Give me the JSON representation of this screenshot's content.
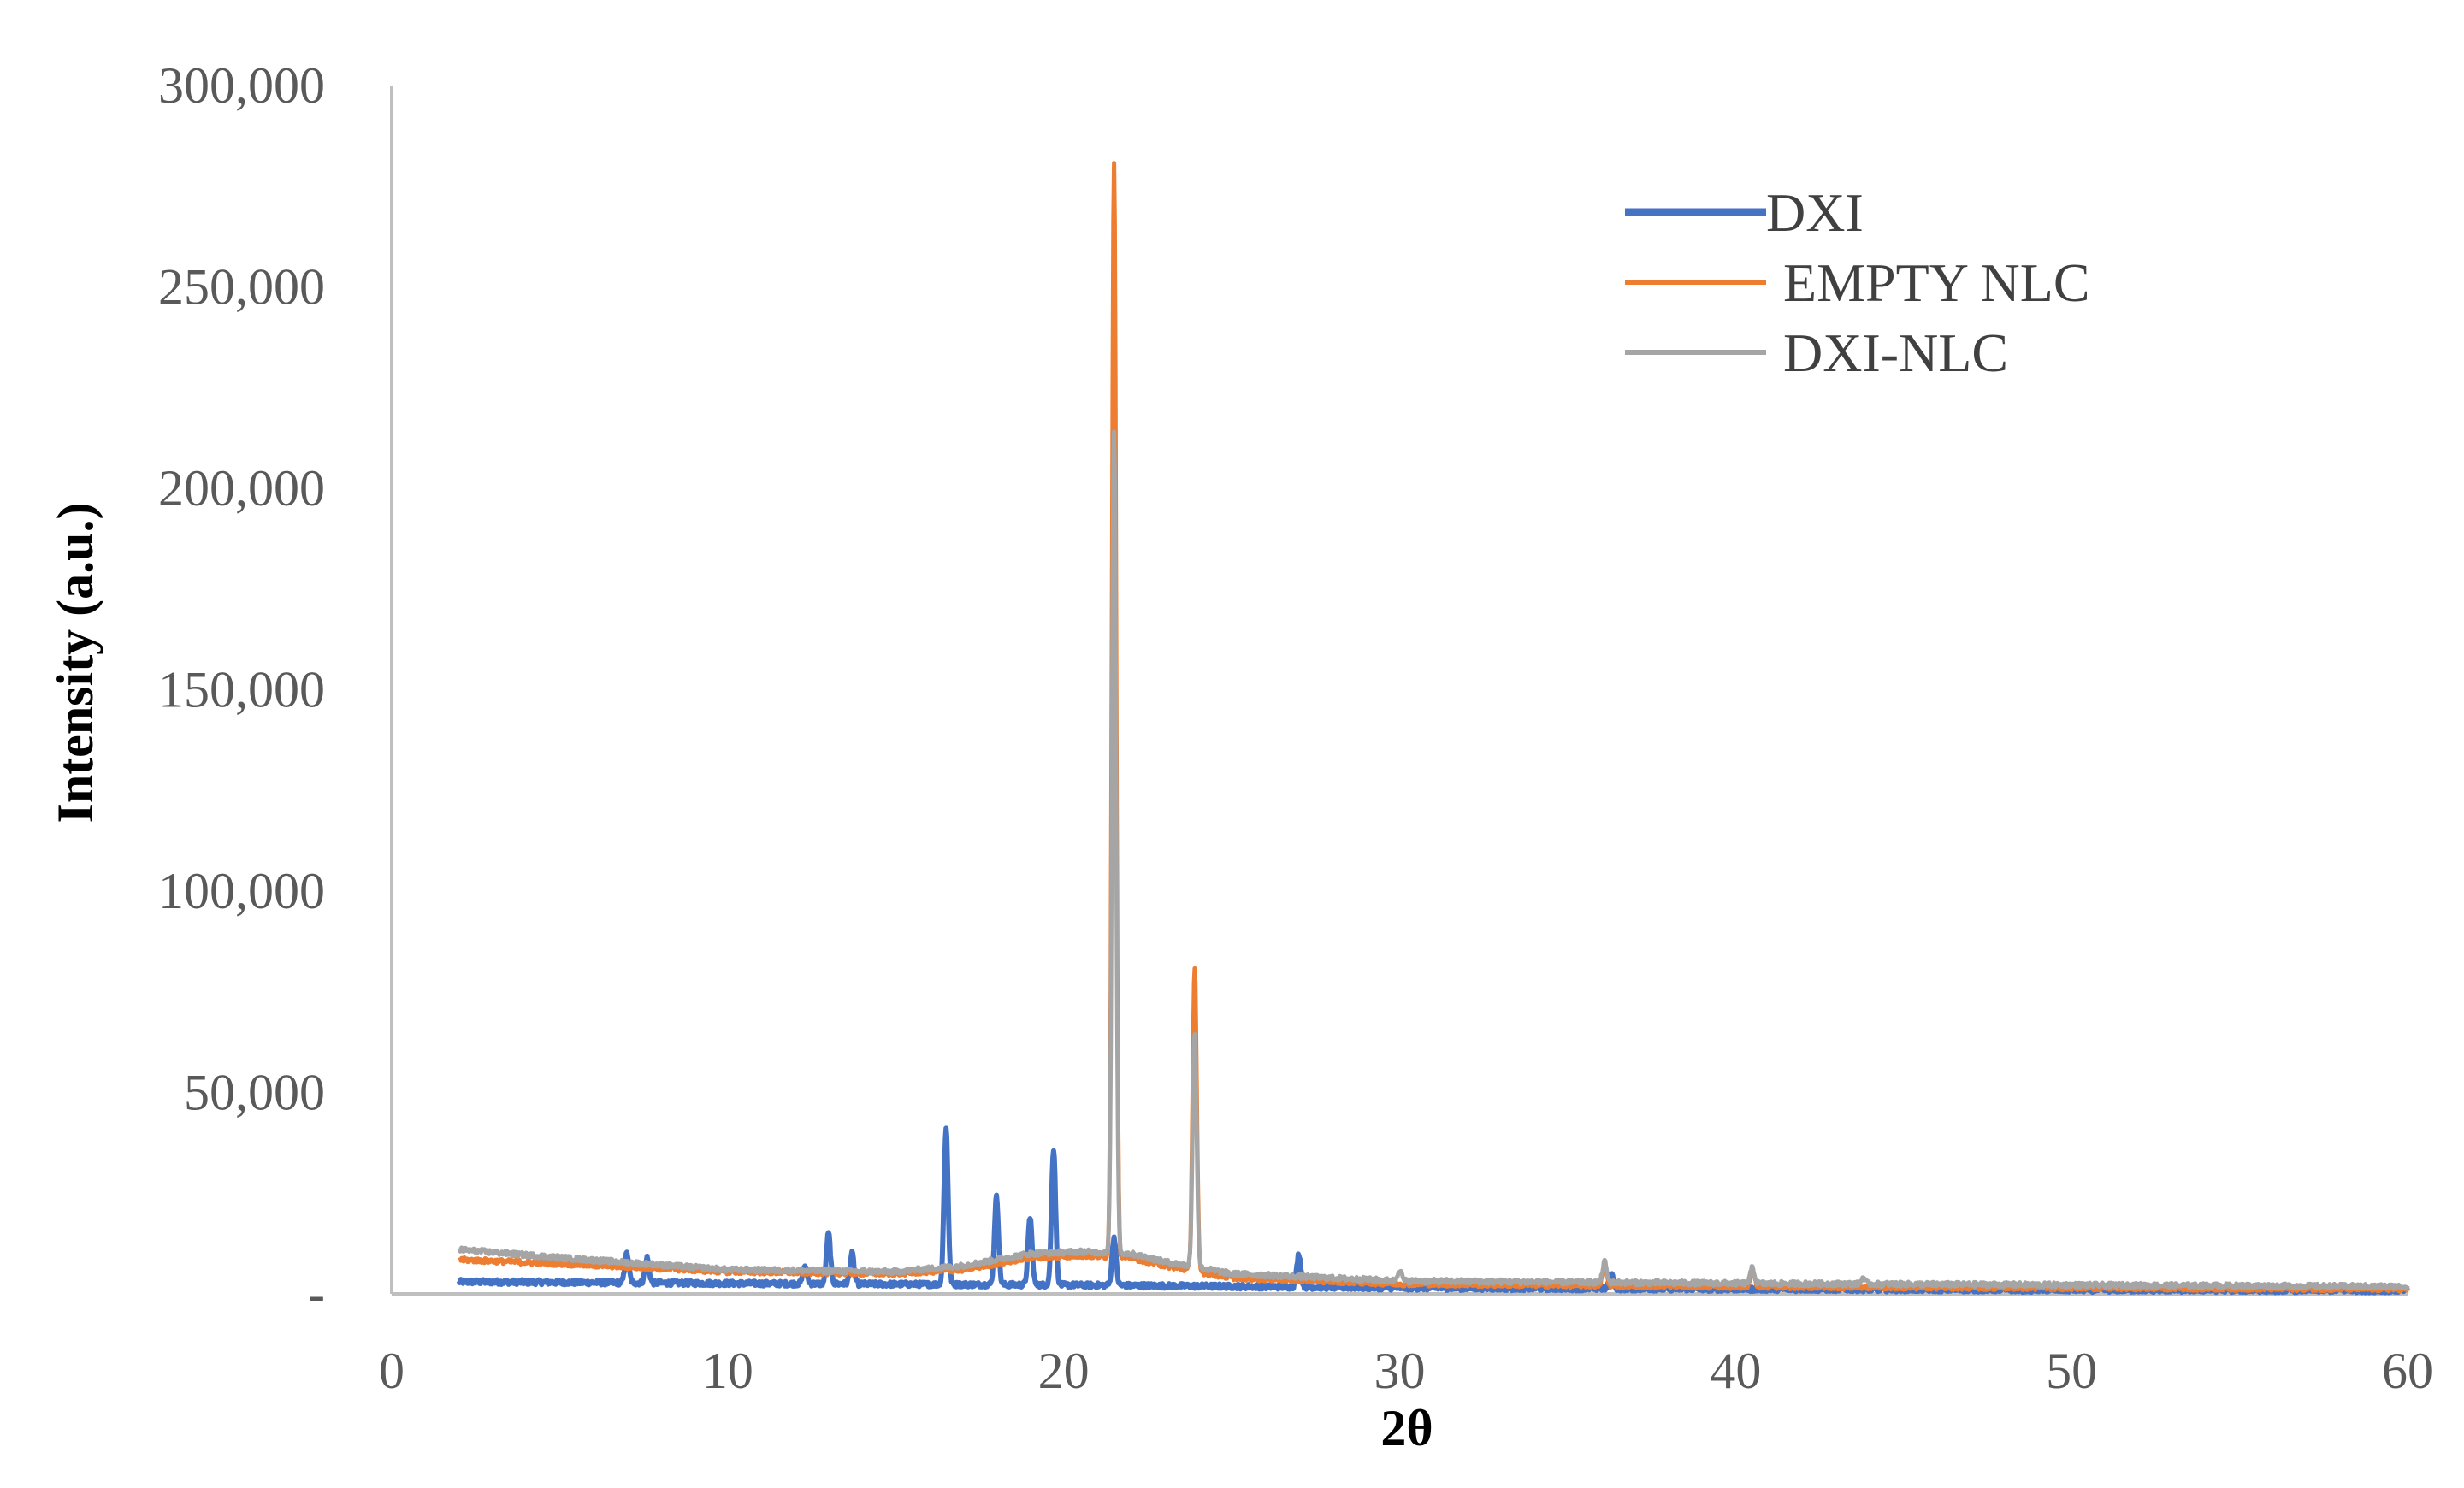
{
  "chart_data": {
    "type": "line",
    "title": "",
    "xlabel": "2θ",
    "ylabel": "Intensity (a.u.)",
    "xlim": [
      0,
      60
    ],
    "ylim": [
      0,
      300000
    ],
    "x_ticks": [
      0,
      10,
      20,
      30,
      40,
      50,
      60
    ],
    "x_tick_labels": [
      "0",
      "10",
      "20",
      "30",
      "40",
      "50",
      "60"
    ],
    "y_ticks": [
      0,
      50000,
      100000,
      150000,
      200000,
      250000,
      300000
    ],
    "y_tick_labels": [
      "-",
      "50,000",
      "100,000",
      "150,000",
      "200,000",
      "250,000",
      "300,000"
    ],
    "grid": false,
    "legend": "top-right",
    "series": [
      {
        "name": "DXI",
        "color": "#4472C4",
        "x_range": [
          2,
          60
        ],
        "baseline": [
          [
            2,
            3000
          ],
          [
            10,
            2600
          ],
          [
            20,
            2200
          ],
          [
            30,
            1500
          ],
          [
            40,
            1200
          ],
          [
            50,
            1000
          ],
          [
            60,
            900
          ]
        ],
        "peaks": [
          [
            7.0,
            10000
          ],
          [
            7.6,
            9000
          ],
          [
            12.3,
            7000
          ],
          [
            13.0,
            15000
          ],
          [
            13.7,
            10000
          ],
          [
            16.5,
            41000
          ],
          [
            18.0,
            24000
          ],
          [
            19.0,
            19000
          ],
          [
            19.7,
            36000
          ],
          [
            21.5,
            14000
          ],
          [
            27.0,
            10000
          ],
          [
            36.3,
            5000
          ]
        ]
      },
      {
        "name": "EMPTY NLC",
        "color": "#ED7D31",
        "x_range": [
          2,
          60
        ],
        "baseline": [
          [
            2,
            8500
          ],
          [
            5,
            7500
          ],
          [
            10,
            5500
          ],
          [
            15,
            5000
          ],
          [
            17,
            6000
          ],
          [
            19,
            9000
          ],
          [
            20.5,
            9500
          ],
          [
            22,
            9000
          ],
          [
            23,
            7000
          ],
          [
            25,
            4000
          ],
          [
            30,
            2500
          ],
          [
            40,
            1800
          ],
          [
            50,
            1500
          ],
          [
            60,
            1200
          ]
        ],
        "peaks": [
          [
            21.5,
            281000
          ],
          [
            23.9,
            81000
          ],
          [
            36.1,
            7000
          ],
          [
            40.5,
            5500
          ]
        ]
      },
      {
        "name": "DXI-NLC",
        "color": "#A5A5A5",
        "x_range": [
          2,
          60
        ],
        "baseline": [
          [
            2,
            11000
          ],
          [
            5,
            9000
          ],
          [
            10,
            6000
          ],
          [
            15,
            5500
          ],
          [
            17,
            7000
          ],
          [
            19,
            10000
          ],
          [
            20.5,
            10500
          ],
          [
            22,
            10000
          ],
          [
            23,
            8000
          ],
          [
            25,
            5000
          ],
          [
            30,
            3200
          ],
          [
            40,
            2600
          ],
          [
            50,
            2200
          ],
          [
            60,
            1800
          ]
        ],
        "peaks": [
          [
            21.5,
            214000
          ],
          [
            23.9,
            65000
          ],
          [
            30.0,
            6000
          ],
          [
            36.1,
            8000
          ],
          [
            40.5,
            6500
          ],
          [
            43.8,
            4000
          ]
        ]
      }
    ]
  }
}
